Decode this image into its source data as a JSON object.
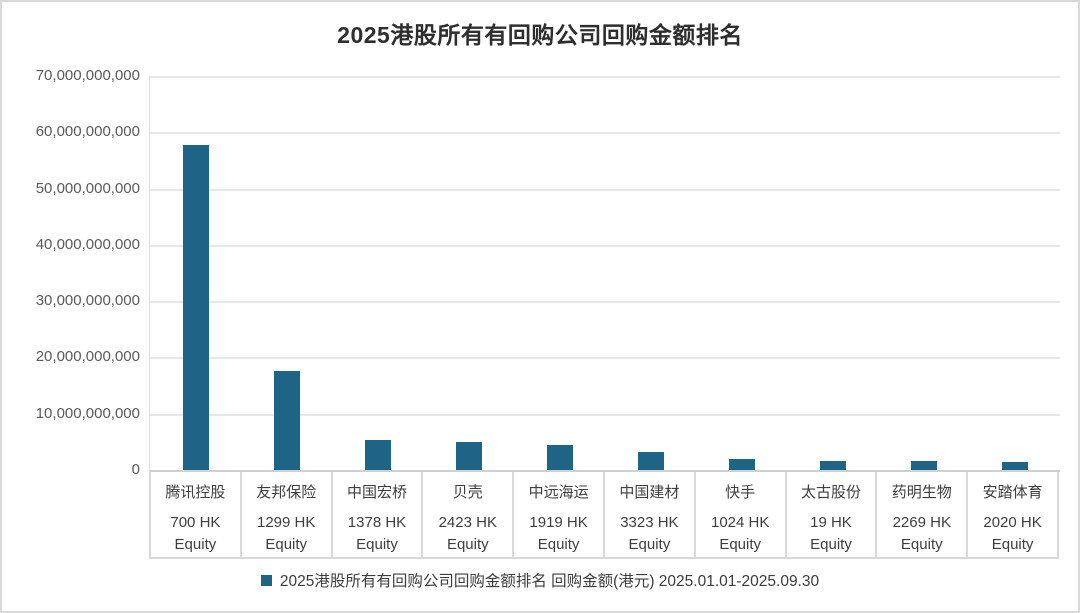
{
  "chart_data": {
    "type": "bar",
    "title": "2025港股所有有回购公司回购金额排名",
    "legend_label": "2025港股所有有回购公司回购金额排名 回购金额(港元) 2025.01.01-2025.09.30",
    "legend_position": "bottom",
    "grid": true,
    "xlabel": "",
    "ylabel": "",
    "ylim": [
      0,
      70000000000
    ],
    "y_tick_labels": [
      "70,000,000,000",
      "60,000,000,000",
      "50,000,000,000",
      "40,000,000,000",
      "30,000,000,000",
      "20,000,000,000",
      "10,000,000,000",
      "0"
    ],
    "categories": [
      {
        "name": "腾讯控股",
        "code": "700 HK",
        "suffix": "Equity"
      },
      {
        "name": "友邦保险",
        "code": "1299 HK",
        "suffix": "Equity"
      },
      {
        "name": "中国宏桥",
        "code": "1378 HK",
        "suffix": "Equity"
      },
      {
        "name": "贝壳",
        "code": "2423 HK",
        "suffix": "Equity"
      },
      {
        "name": "中远海运",
        "code": "1919 HK",
        "suffix": "Equity"
      },
      {
        "name": "中国建材",
        "code": "3323 HK",
        "suffix": "Equity"
      },
      {
        "name": "快手",
        "code": "1024 HK",
        "suffix": "Equity"
      },
      {
        "name": "太古股份",
        "code": "19 HK",
        "suffix": "Equity"
      },
      {
        "name": "药明生物",
        "code": "2269 HK",
        "suffix": "Equity"
      },
      {
        "name": "安踏体育",
        "code": "2020 HK",
        "suffix": "Equity"
      }
    ],
    "values": [
      57700000000,
      17600000000,
      5300000000,
      5000000000,
      4400000000,
      3200000000,
      1900000000,
      1650000000,
      1550000000,
      1500000000
    ],
    "bar_color": "#1d6486"
  },
  "colors": {
    "bar": "#1d6486",
    "grid": "#e7e7e7",
    "axis": "#cfcfcf",
    "cell_border": "#d9d9d9",
    "title_text": "#2e2e2e",
    "tick_text": "#5a5a5a",
    "label_text": "#3e3e3e"
  }
}
